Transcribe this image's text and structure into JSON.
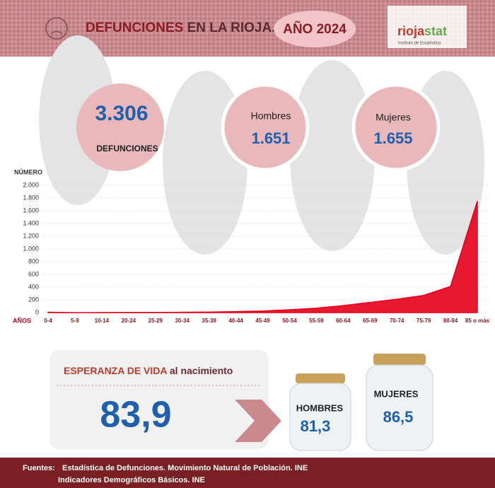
{
  "header": {
    "title_part1": "DEFUNCIONES",
    "title_part2": "EN LA RIOJA.",
    "year": "AÑO 2024",
    "logo_part1": "rioja",
    "logo_part2": "stat",
    "logo_subtitle": "Instituto de Estadística"
  },
  "summary": {
    "total": "3.306",
    "total_label": "DEFUNCIONES",
    "men_label": "Hombres",
    "men": "1.651",
    "women_label": "Mujeres",
    "women": "1.655"
  },
  "chart_data": {
    "type": "area",
    "y_label": "NÚMERO",
    "x_label": "AÑOS",
    "categories": [
      "0-4",
      "5-9",
      "10-14",
      "20-24",
      "25-29",
      "30-34",
      "35-39",
      "40-44",
      "45-49",
      "50-54",
      "55-59",
      "60-64",
      "65-69",
      "70-74",
      "75-79",
      "80-84",
      "85 o más"
    ],
    "values": [
      5,
      0,
      1,
      3,
      3,
      5,
      8,
      15,
      25,
      45,
      70,
      110,
      160,
      210,
      270,
      410,
      1750
    ],
    "color": "#e3001b",
    "ylim": [
      0,
      2000
    ],
    "yticks": [
      0,
      200,
      400,
      600,
      800,
      {
        "value": 1000,
        "label": "1.000"
      },
      {
        "value": 1200,
        "label": "1.200"
      },
      {
        "value": 1400,
        "label": "1.400"
      },
      {
        "value": 1600,
        "label": "1.600"
      },
      {
        "value": 1800,
        "label": "1.800"
      },
      {
        "value": 2000,
        "label": "2.000"
      }
    ],
    "grid": true
  },
  "life_expectancy": {
    "title_part1": "ESPERANZA DE VIDA",
    "title_part2": "al nacimiento",
    "total": "83,9",
    "men_label": "HOMBRES",
    "men": "81,3",
    "women_label": "MUJERES",
    "women": "86,5"
  },
  "footer": {
    "label": "Fuentes:",
    "source1": "Estadística de Defunciones. Movimiento Natural de Población. INE",
    "source2": "Indicadores Demográficos Básicos. INE"
  }
}
